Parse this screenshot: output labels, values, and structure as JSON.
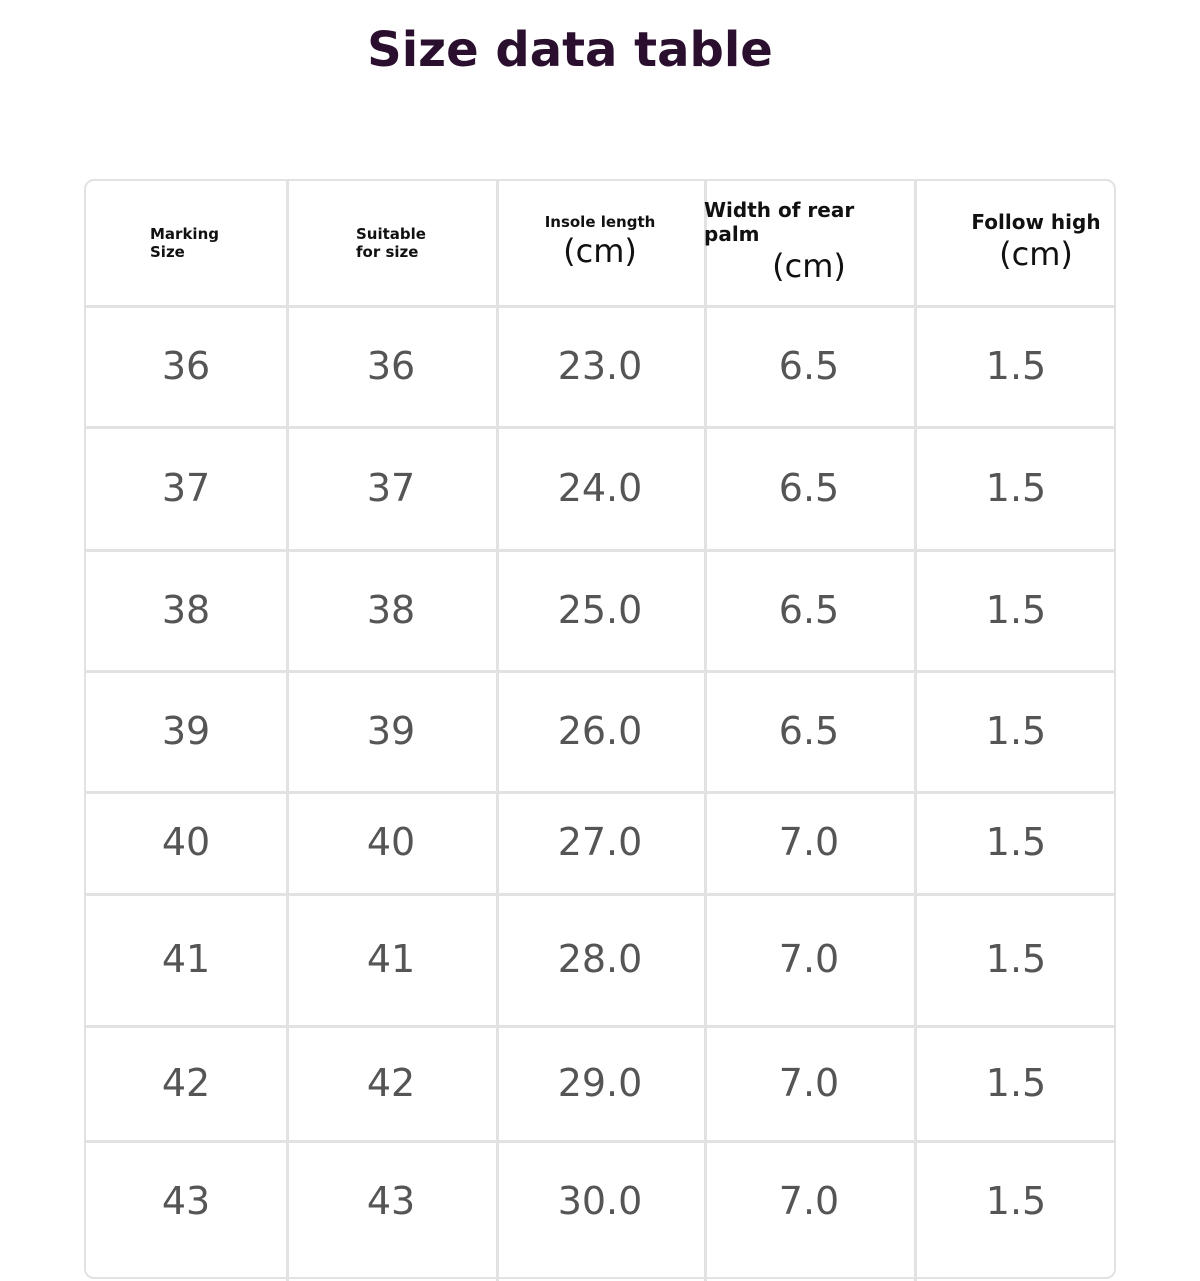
{
  "title": "Size data table",
  "table": {
    "header": [
      [
        "Marking",
        "Size"
      ],
      [
        "Suitable",
        "for size"
      ],
      [
        "Insole length",
        "(cm)"
      ],
      [
        "Width of rear palm",
        "(cm)"
      ],
      [
        "Follow high",
        "(cm)"
      ]
    ],
    "rows": [
      [
        "36",
        "36",
        "23.0",
        "6.5",
        "1.5"
      ],
      [
        "37",
        "37",
        "24.0",
        "6.5",
        "1.5"
      ],
      [
        "38",
        "38",
        "25.0",
        "6.5",
        "1.5"
      ],
      [
        "39",
        "39",
        "26.0",
        "6.5",
        "1.5"
      ],
      [
        "40",
        "40",
        "27.0",
        "7.0",
        "1.5"
      ],
      [
        "41",
        "41",
        "28.0",
        "7.0",
        "1.5"
      ],
      [
        "42",
        "42",
        "29.0",
        "7.0",
        "1.5"
      ],
      [
        "43",
        "43",
        "30.0",
        "7.0",
        "1.5"
      ]
    ]
  }
}
